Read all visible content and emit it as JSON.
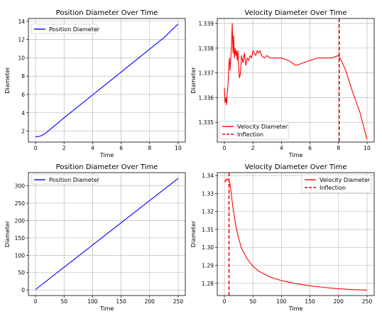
{
  "colors": {
    "blue": "#0000ff",
    "red": "#ff0000",
    "grid": "#b0b0b0"
  },
  "chart_data": [
    {
      "type": "line",
      "title": "Position Diameter Over Time",
      "xlabel": "Time",
      "ylabel": "Diameter",
      "xlim": [
        -0.5,
        10.5
      ],
      "ylim": [
        0.8,
        14.3
      ],
      "xticks": [
        0,
        2,
        4,
        6,
        8,
        10
      ],
      "yticks": [
        2,
        4,
        6,
        8,
        10,
        12,
        14
      ],
      "grid": true,
      "legend": "upper left",
      "series": [
        {
          "name": "Position Diameter",
          "color": "#0000ff",
          "style": "solid",
          "x": [
            0,
            0.2,
            0.4,
            0.6,
            0.8,
            1.0,
            1.5,
            2,
            3,
            4,
            5,
            6,
            7,
            8,
            9,
            10
          ],
          "y": [
            1.4,
            1.4,
            1.5,
            1.65,
            1.9,
            2.15,
            2.8,
            3.45,
            4.7,
            5.95,
            7.2,
            8.45,
            9.7,
            10.95,
            12.2,
            13.7
          ]
        }
      ]
    },
    {
      "type": "line",
      "title": "Velocity Diameter Over Time",
      "xlabel": "Time",
      "ylabel": "Diameter",
      "xlim": [
        -0.5,
        10.5
      ],
      "ylim": [
        1.3342,
        1.3392
      ],
      "xticks": [
        0,
        2,
        4,
        6,
        8,
        10
      ],
      "yticks": [
        1.335,
        1.336,
        1.337,
        1.338,
        1.339
      ],
      "ytick_labels": [
        "1.335",
        "1.336",
        "1.337",
        "1.338",
        "1.339"
      ],
      "grid": true,
      "legend": "lower left",
      "series": [
        {
          "name": "Velocity Diameter",
          "color": "#ff0000",
          "style": "solid",
          "x": [
            0,
            0.05,
            0.1,
            0.15,
            0.2,
            0.25,
            0.3,
            0.35,
            0.4,
            0.5,
            0.55,
            0.6,
            0.65,
            0.7,
            0.75,
            0.8,
            0.85,
            0.9,
            0.95,
            1.0,
            1.05,
            1.1,
            1.15,
            1.2,
            1.3,
            1.4,
            1.5,
            1.6,
            1.7,
            1.8,
            1.9,
            2.0,
            2.1,
            2.2,
            2.3,
            2.4,
            2.5,
            2.6,
            2.8,
            3.0,
            3.2,
            3.5,
            4.0,
            4.5,
            5.0,
            5.5,
            6.0,
            6.5,
            7.0,
            7.5,
            8.0,
            8.2,
            8.5,
            9.0,
            9.5,
            10.0
          ],
          "y": [
            1.3364,
            1.3358,
            1.336,
            1.3357,
            1.3362,
            1.3365,
            1.3372,
            1.3376,
            1.3371,
            1.3382,
            1.339,
            1.3378,
            1.3385,
            1.3376,
            1.338,
            1.3377,
            1.3379,
            1.3375,
            1.3379,
            1.3372,
            1.3368,
            1.3369,
            1.3372,
            1.3377,
            1.3374,
            1.3378,
            1.3373,
            1.3376,
            1.3375,
            1.3377,
            1.3376,
            1.3379,
            1.3378,
            1.3377,
            1.3379,
            1.3378,
            1.3379,
            1.3377,
            1.3376,
            1.3377,
            1.3376,
            1.3376,
            1.3376,
            1.3375,
            1.3373,
            1.3374,
            1.3375,
            1.3376,
            1.3376,
            1.3376,
            1.3377,
            1.3375,
            1.3371,
            1.3362,
            1.3354,
            1.3343
          ]
        },
        {
          "name": "Inflection",
          "color": "#ff0000",
          "style": "dashed",
          "vline_x": 8.05
        }
      ]
    },
    {
      "type": "line",
      "title": "Position Diameter Over Time",
      "xlabel": "Time",
      "ylabel": "Diameter",
      "xlim": [
        -12.5,
        262.5
      ],
      "ylim": [
        -16,
        338
      ],
      "xticks": [
        0,
        50,
        100,
        150,
        200,
        250
      ],
      "yticks": [
        0,
        50,
        100,
        150,
        200,
        250,
        300
      ],
      "grid": true,
      "legend": "upper left",
      "series": [
        {
          "name": "Position Diameter",
          "color": "#0000ff",
          "style": "solid",
          "x": [
            0,
            50,
            100,
            150,
            200,
            250
          ],
          "y": [
            1.4,
            65.5,
            129.5,
            193.5,
            257.5,
            321.5
          ]
        }
      ]
    },
    {
      "type": "line",
      "title": "Velocity Diameter Over Time",
      "xlabel": "Time",
      "ylabel": "Diameter",
      "xlim": [
        -12.5,
        262.5
      ],
      "ylim": [
        1.2732,
        1.3416
      ],
      "xticks": [
        0,
        50,
        100,
        150,
        200,
        250
      ],
      "yticks": [
        1.28,
        1.29,
        1.3,
        1.31,
        1.32,
        1.33,
        1.34
      ],
      "ytick_labels": [
        "1.28",
        "1.29",
        "1.30",
        "1.31",
        "1.32",
        "1.33",
        "1.34"
      ],
      "grid": true,
      "legend": "upper right",
      "series": [
        {
          "name": "Velocity Diameter",
          "color": "#ff0000",
          "style": "solid",
          "x": [
            0,
            1,
            2,
            3,
            4,
            5,
            6,
            7,
            8,
            10,
            12,
            15,
            20,
            25,
            30,
            40,
            50,
            60,
            80,
            100,
            125,
            150,
            175,
            200,
            225,
            250
          ],
          "y": [
            1.3364,
            1.3365,
            1.3375,
            1.3371,
            1.3382,
            1.3377,
            1.3376,
            1.3377,
            1.3376,
            1.335,
            1.33,
            1.322,
            1.312,
            1.305,
            1.2995,
            1.2935,
            1.2895,
            1.2868,
            1.2835,
            1.2815,
            1.2798,
            1.2786,
            1.2777,
            1.277,
            1.2765,
            1.2762
          ]
        },
        {
          "name": "Inflection",
          "color": "#ff0000",
          "style": "dashed",
          "vline_x": 8.05
        }
      ]
    }
  ]
}
